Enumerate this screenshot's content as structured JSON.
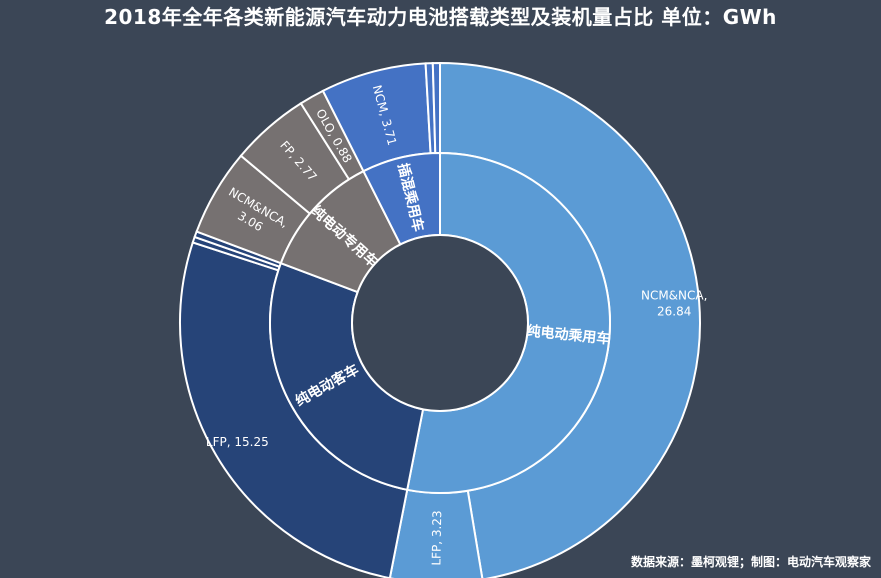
{
  "title": "2018年全年各类新能源汽车动力电池搭载类型及装机量占比  单位：GWh",
  "source": "数据来源：墨柯观锂；制图：电动汽车观察家",
  "colors": {
    "background": "#3b4656",
    "passenger": "#5b9bd5",
    "bus": "#264478",
    "special": "#767171",
    "hybrid": "#4472c4",
    "separator": "#ffffff"
  },
  "chart_data": {
    "type": "sunburst",
    "unit": "GWh",
    "inner_ring": [
      {
        "name": "纯电动乘用车",
        "value": 30.07
      },
      {
        "name": "纯电动客车",
        "value": 15.65
      },
      {
        "name": "纯电动专用车",
        "value": 6.71
      },
      {
        "name": "插混乘用车",
        "value": 4.21
      }
    ],
    "outer_ring": [
      {
        "parent": "纯电动乘用车",
        "name": "NCM&NCA",
        "value": 26.84,
        "label": "NCM&NCA,\n26.84"
      },
      {
        "parent": "纯电动乘用车",
        "name": "LFP",
        "value": 3.23,
        "label": "LFP, 3.23"
      },
      {
        "parent": "纯电动客车",
        "name": "LFP",
        "value": 15.25,
        "label": "LFP, 15.25"
      },
      {
        "parent": "纯电动客车",
        "name": "other",
        "value": 0.2,
        "label": ""
      },
      {
        "parent": "纯电动客车",
        "name": "other",
        "value": 0.2,
        "label": ""
      },
      {
        "parent": "纯电动专用车",
        "name": "NCM&NCA",
        "value": 3.06,
        "label": "NCM&NCA,\n3.06"
      },
      {
        "parent": "纯电动专用车",
        "name": "FP",
        "value": 2.77,
        "label": "FP, 2.77"
      },
      {
        "parent": "纯电动专用车",
        "name": "other",
        "value": 0.88,
        "label": "OLO, 0.88"
      },
      {
        "parent": "插混乘用车",
        "name": "NCM",
        "value": 3.71,
        "label": "NCM, 3.71"
      },
      {
        "parent": "插混乘用车",
        "name": "other",
        "value": 0.25,
        "label": ""
      },
      {
        "parent": "插混乘用车",
        "name": "other",
        "value": 0.25,
        "label": ""
      }
    ]
  }
}
